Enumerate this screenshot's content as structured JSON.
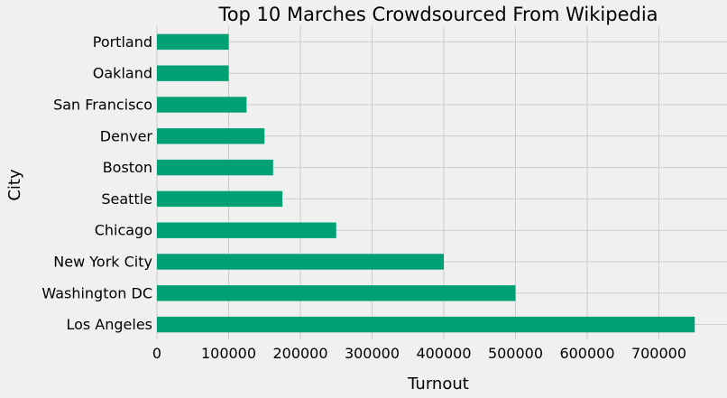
{
  "chart_data": {
    "type": "bar",
    "orientation": "horizontal",
    "title": "Top 10 Marches Crowdsourced From Wikipedia",
    "xlabel": "Turnout",
    "ylabel": "City",
    "categories": [
      "Los Angeles",
      "Washington DC",
      "New York City",
      "Chicago",
      "Seattle",
      "Boston",
      "Denver",
      "San Francisco",
      "Oakland",
      "Portland"
    ],
    "values": [
      750000,
      500000,
      400000,
      250000,
      175000,
      162000,
      150000,
      125000,
      100000,
      100000
    ],
    "xlim": [
      0,
      795000
    ],
    "xticks": [
      0,
      100000,
      200000,
      300000,
      400000,
      500000,
      600000,
      700000
    ],
    "xtick_labels": [
      "0",
      "100000",
      "200000",
      "300000",
      "400000",
      "500000",
      "600000",
      "700000"
    ],
    "bar_color": "#00a075",
    "grid": true,
    "background_color": "#f0f0f0"
  }
}
